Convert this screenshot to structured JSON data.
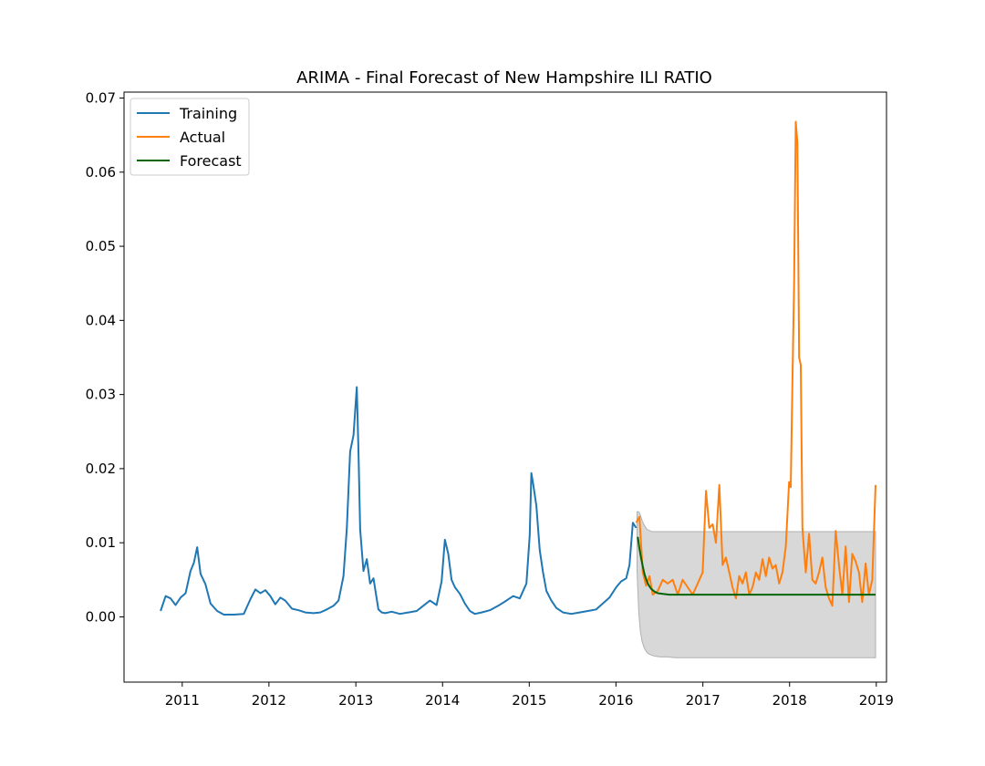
{
  "chart_data": {
    "type": "line",
    "title": "ARIMA - Final Forecast of New Hampshire ILI RATIO",
    "xlabel": "",
    "ylabel": "",
    "xlim": [
      "2010-05-01",
      "2019-02-13"
    ],
    "ylim": [
      -0.0088,
      0.0708
    ],
    "x_ticks": [
      "2011",
      "2012",
      "2013",
      "2014",
      "2015",
      "2016",
      "2017",
      "2018",
      "2019"
    ],
    "y_ticks": [
      0.0,
      0.01,
      0.02,
      0.03,
      0.04,
      0.05,
      0.06,
      0.07
    ],
    "y_tick_labels": [
      "0.00",
      "0.01",
      "0.02",
      "0.03",
      "0.04",
      "0.05",
      "0.06",
      "0.07"
    ],
    "grid": false,
    "legend": {
      "position": "upper-left",
      "entries": [
        "Training",
        "Actual",
        "Forecast"
      ]
    },
    "colors": {
      "Training": "#1f77b4",
      "Actual": "#ff7f0e",
      "Forecast": "#006400",
      "band": "#d8d8d8"
    },
    "series": [
      {
        "name": "Training",
        "x": [
          "2010-10-02",
          "2010-10-23",
          "2010-11-13",
          "2010-12-04",
          "2010-12-25",
          "2011-01-15",
          "2011-02-05",
          "2011-02-19",
          "2011-03-05",
          "2011-03-19",
          "2011-04-09",
          "2011-04-30",
          "2011-05-28",
          "2011-06-25",
          "2011-08-06",
          "2011-09-17",
          "2011-10-15",
          "2011-11-05",
          "2011-11-26",
          "2011-12-17",
          "2012-01-07",
          "2012-01-28",
          "2012-02-18",
          "2012-03-10",
          "2012-04-07",
          "2012-05-05",
          "2012-06-02",
          "2012-07-07",
          "2012-08-04",
          "2012-09-01",
          "2012-09-29",
          "2012-10-20",
          "2012-11-10",
          "2012-11-24",
          "2012-12-08",
          "2012-12-22",
          "2013-01-05",
          "2013-01-12",
          "2013-01-19",
          "2013-02-02",
          "2013-02-16",
          "2013-03-02",
          "2013-03-16",
          "2013-04-06",
          "2013-04-20",
          "2013-05-04",
          "2013-06-01",
          "2013-07-06",
          "2013-08-10",
          "2013-09-14",
          "2013-10-12",
          "2013-11-09",
          "2013-12-07",
          "2013-12-28",
          "2014-01-11",
          "2014-01-25",
          "2014-02-08",
          "2014-02-22",
          "2014-03-15",
          "2014-04-05",
          "2014-04-26",
          "2014-05-17",
          "2014-06-14",
          "2014-07-19",
          "2014-08-23",
          "2014-09-27",
          "2014-10-25",
          "2014-11-22",
          "2014-12-20",
          "2015-01-03",
          "2015-01-10",
          "2015-01-17",
          "2015-01-31",
          "2015-02-14",
          "2015-02-28",
          "2015-03-14",
          "2015-04-04",
          "2015-04-25",
          "2015-05-23",
          "2015-06-27",
          "2015-08-01",
          "2015-09-05",
          "2015-10-10",
          "2015-11-07",
          "2015-12-05",
          "2016-01-02",
          "2016-01-23",
          "2016-02-13",
          "2016-02-27",
          "2016-03-12",
          "2016-03-26"
        ],
        "values": [
          0.0008,
          0.0028,
          0.0025,
          0.0016,
          0.0026,
          0.0032,
          0.0062,
          0.0073,
          0.0094,
          0.0058,
          0.0044,
          0.0018,
          0.0008,
          0.0003,
          0.0003,
          0.0004,
          0.0024,
          0.0037,
          0.0032,
          0.0036,
          0.0028,
          0.0017,
          0.0026,
          0.0022,
          0.0011,
          0.0009,
          0.0006,
          0.0005,
          0.0006,
          0.001,
          0.0015,
          0.0022,
          0.0055,
          0.012,
          0.0223,
          0.0245,
          0.031,
          0.022,
          0.0118,
          0.0062,
          0.0078,
          0.0045,
          0.0052,
          0.001,
          0.0006,
          0.0005,
          0.0007,
          0.0004,
          0.0006,
          0.0008,
          0.0015,
          0.0022,
          0.0016,
          0.0048,
          0.0104,
          0.0085,
          0.005,
          0.004,
          0.0031,
          0.0018,
          0.0008,
          0.0004,
          0.0006,
          0.0009,
          0.0015,
          0.0022,
          0.0028,
          0.0025,
          0.0045,
          0.011,
          0.0194,
          0.018,
          0.015,
          0.009,
          0.006,
          0.0035,
          0.0022,
          0.0012,
          0.0006,
          0.0004,
          0.0006,
          0.0008,
          0.001,
          0.0018,
          0.0026,
          0.004,
          0.0048,
          0.0052,
          0.007,
          0.0127,
          0.012
        ]
      },
      {
        "name": "Actual",
        "x": [
          "2016-03-26",
          "2016-04-09",
          "2016-04-23",
          "2016-05-07",
          "2016-05-21",
          "2016-06-04",
          "2016-06-25",
          "2016-07-16",
          "2016-08-06",
          "2016-08-27",
          "2016-09-17",
          "2016-10-08",
          "2016-10-29",
          "2016-11-19",
          "2016-12-10",
          "2016-12-31",
          "2017-01-14",
          "2017-01-28",
          "2017-02-11",
          "2017-02-25",
          "2017-03-11",
          "2017-03-25",
          "2017-04-08",
          "2017-04-22",
          "2017-05-06",
          "2017-05-20",
          "2017-06-03",
          "2017-06-17",
          "2017-07-01",
          "2017-07-15",
          "2017-07-29",
          "2017-08-12",
          "2017-08-26",
          "2017-09-09",
          "2017-09-23",
          "2017-10-07",
          "2017-10-21",
          "2017-11-04",
          "2017-11-18",
          "2017-12-02",
          "2017-12-16",
          "2017-12-30",
          "2018-01-06",
          "2018-01-13",
          "2018-01-20",
          "2018-01-27",
          "2018-02-03",
          "2018-02-10",
          "2018-02-17",
          "2018-02-24",
          "2018-03-03",
          "2018-03-10",
          "2018-03-24",
          "2018-04-07",
          "2018-04-21",
          "2018-05-05",
          "2018-05-19",
          "2018-06-02",
          "2018-06-16",
          "2018-06-30",
          "2018-07-14",
          "2018-07-28",
          "2018-08-11",
          "2018-08-25",
          "2018-09-08",
          "2018-09-22",
          "2018-10-06",
          "2018-10-20",
          "2018-11-03",
          "2018-11-17",
          "2018-12-01",
          "2018-12-15",
          "2018-12-29"
        ],
        "values": [
          0.0127,
          0.0135,
          0.006,
          0.0042,
          0.0055,
          0.003,
          0.0035,
          0.005,
          0.0045,
          0.005,
          0.003,
          0.005,
          0.004,
          0.003,
          0.0045,
          0.006,
          0.017,
          0.012,
          0.0125,
          0.01,
          0.0178,
          0.007,
          0.008,
          0.006,
          0.004,
          0.0025,
          0.0055,
          0.0045,
          0.006,
          0.003,
          0.004,
          0.006,
          0.005,
          0.0078,
          0.0055,
          0.008,
          0.0065,
          0.007,
          0.0045,
          0.006,
          0.0095,
          0.0182,
          0.0175,
          0.032,
          0.045,
          0.0668,
          0.064,
          0.035,
          0.034,
          0.012,
          0.009,
          0.006,
          0.0112,
          0.005,
          0.0045,
          0.006,
          0.008,
          0.004,
          0.0025,
          0.0015,
          0.0116,
          0.007,
          0.003,
          0.0095,
          0.002,
          0.0085,
          0.0075,
          0.006,
          0.002,
          0.0072,
          0.003,
          0.005,
          0.0178
        ]
      },
      {
        "name": "Forecast",
        "x": [
          "2016-04-02",
          "2016-04-09",
          "2016-04-16",
          "2016-04-23",
          "2016-04-30",
          "2016-05-07",
          "2016-05-14",
          "2016-05-21",
          "2016-05-28",
          "2016-06-11",
          "2016-06-25",
          "2016-07-16",
          "2016-08-13",
          "2016-09-10",
          "2017-01-01",
          "2017-06-01",
          "2018-01-01",
          "2018-06-01",
          "2018-12-29"
        ],
        "values": [
          0.0108,
          0.0092,
          0.0079,
          0.0068,
          0.0058,
          0.0051,
          0.0045,
          0.0041,
          0.0038,
          0.0034,
          0.0032,
          0.0031,
          0.003,
          0.003,
          0.003,
          0.003,
          0.003,
          0.003,
          0.003
        ]
      }
    ],
    "confidence_band": {
      "x": [
        "2016-03-30",
        "2016-04-06",
        "2016-04-13",
        "2016-04-20",
        "2016-04-27",
        "2016-05-04",
        "2016-05-11",
        "2016-05-18",
        "2016-06-01",
        "2016-06-15",
        "2016-07-06",
        "2016-08-03",
        "2016-09-07",
        "2017-01-01",
        "2018-01-01",
        "2018-12-29"
      ],
      "upper": [
        0.0142,
        0.0142,
        0.0137,
        0.013,
        0.0125,
        0.0121,
        0.0118,
        0.0117,
        0.0115,
        0.0115,
        0.0115,
        0.0115,
        0.0115,
        0.0115,
        0.0115,
        0.0115
      ],
      "lower": [
        0.0062,
        0.0005,
        -0.002,
        -0.0033,
        -0.004,
        -0.0045,
        -0.0048,
        -0.005,
        -0.0052,
        -0.0053,
        -0.0054,
        -0.0054,
        -0.0055,
        -0.0055,
        -0.0055,
        -0.0055
      ]
    }
  }
}
